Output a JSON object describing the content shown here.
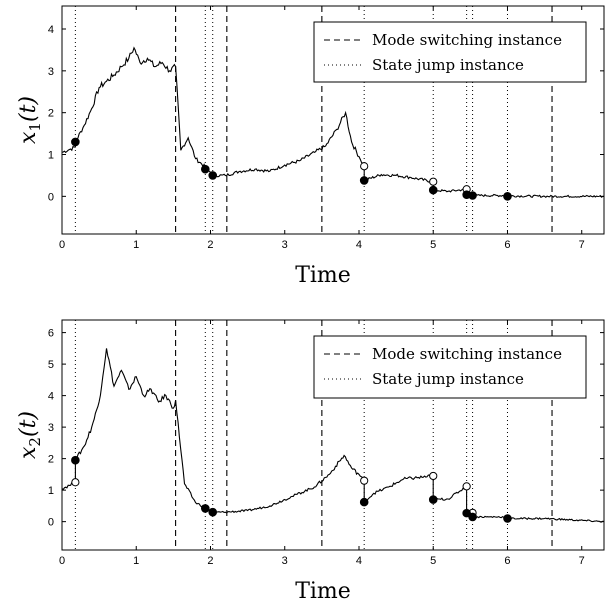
{
  "chart_data": [
    {
      "type": "line",
      "xlabel": "Time",
      "ylabel": "x1(t)",
      "ylabel_parts": {
        "base": "x",
        "sub": "1",
        "arg": "(t)"
      },
      "xlim": [
        0,
        7.3
      ],
      "ylim": [
        -0.9,
        4.55
      ],
      "xticks": [
        "0",
        "1",
        "2",
        "3",
        "4",
        "5",
        "6",
        "7"
      ],
      "yticks": [
        "0",
        "1",
        "2",
        "3",
        "4"
      ],
      "grid": false,
      "legend_position": "top-right",
      "legend": [
        {
          "label": "Mode switching instance",
          "style": "dashed"
        },
        {
          "label": "State jump instance",
          "style": "dotted"
        }
      ],
      "mode_switching_times": [
        1.53,
        2.22,
        3.5,
        6.6
      ],
      "state_jump_times": [
        0.18,
        1.93,
        2.03,
        4.07,
        5.0,
        5.45,
        5.53,
        6.0
      ],
      "series": [
        {
          "x": [
            0,
            0.1,
            0.18,
            0.18,
            0.3,
            0.4,
            0.5,
            0.6,
            0.7,
            0.8,
            0.9,
            0.97,
            1.05,
            1.15,
            1.25,
            1.35,
            1.45,
            1.53,
            1.6,
            1.7,
            1.8,
            1.93,
            1.93,
            2.03,
            2.03,
            2.2,
            2.4,
            2.6,
            2.8,
            3.0,
            3.2,
            3.4,
            3.55,
            3.7,
            3.82,
            3.9,
            4.0,
            4.07,
            4.07,
            4.3,
            4.5,
            4.7,
            5.0,
            5.0,
            5.2,
            5.45,
            5.45,
            5.53,
            5.53,
            6.0,
            6.0,
            6.5,
            7.3
          ],
          "y": [
            1.05,
            1.12,
            1.18,
            1.3,
            1.7,
            2.1,
            2.6,
            2.75,
            2.9,
            3.1,
            3.3,
            3.55,
            3.2,
            3.3,
            3.1,
            3.2,
            3.0,
            3.1,
            1.1,
            1.4,
            0.9,
            0.7,
            0.65,
            0.55,
            0.5,
            0.5,
            0.6,
            0.65,
            0.6,
            0.75,
            0.85,
            1.05,
            1.2,
            1.6,
            2.0,
            1.3,
            0.95,
            0.72,
            0.38,
            0.52,
            0.5,
            0.45,
            0.35,
            0.15,
            0.12,
            0.17,
            0.04,
            0.04,
            0.02,
            0.02,
            0.01,
            0.0,
            0.0
          ]
        }
      ],
      "jump_markers": {
        "pre_jump_open": [
          {
            "x": 4.07,
            "y": 0.72
          },
          {
            "x": 5.0,
            "y": 0.35
          },
          {
            "x": 5.45,
            "y": 0.17
          }
        ],
        "post_jump_filled": [
          {
            "x": 0.18,
            "y": 1.3
          },
          {
            "x": 1.93,
            "y": 0.65
          },
          {
            "x": 2.03,
            "y": 0.5
          },
          {
            "x": 4.07,
            "y": 0.38
          },
          {
            "x": 5.0,
            "y": 0.15
          },
          {
            "x": 5.45,
            "y": 0.04
          },
          {
            "x": 5.53,
            "y": 0.02
          },
          {
            "x": 6.0,
            "y": 0.0
          }
        ]
      }
    },
    {
      "type": "line",
      "xlabel": "Time",
      "ylabel": "x2(t)",
      "ylabel_parts": {
        "base": "x",
        "sub": "2",
        "arg": "(t)"
      },
      "xlim": [
        0,
        7.3
      ],
      "ylim": [
        -0.9,
        6.4
      ],
      "xticks": [
        "0",
        "1",
        "2",
        "3",
        "4",
        "5",
        "6",
        "7"
      ],
      "yticks": [
        "0",
        "1",
        "2",
        "3",
        "4",
        "5",
        "6"
      ],
      "grid": false,
      "legend_position": "top-right",
      "legend": [
        {
          "label": "Mode switching instance",
          "style": "dashed"
        },
        {
          "label": "State jump instance",
          "style": "dotted"
        }
      ],
      "mode_switching_times": [
        1.53,
        2.22,
        3.5,
        6.6
      ],
      "state_jump_times": [
        0.18,
        1.93,
        2.03,
        4.07,
        5.0,
        5.45,
        5.53,
        6.0
      ],
      "series": [
        {
          "x": [
            0,
            0.1,
            0.18,
            0.18,
            0.3,
            0.4,
            0.5,
            0.6,
            0.7,
            0.8,
            0.9,
            1.0,
            1.1,
            1.2,
            1.3,
            1.4,
            1.5,
            1.53,
            1.65,
            1.8,
            1.93,
            1.93,
            2.03,
            2.03,
            2.2,
            2.5,
            2.8,
            3.1,
            3.4,
            3.6,
            3.8,
            3.9,
            4.0,
            4.07,
            4.07,
            4.2,
            4.4,
            4.6,
            4.8,
            5.0,
            5.0,
            5.2,
            5.45,
            5.45,
            5.53,
            5.53,
            6.0,
            6.0,
            6.5,
            7.3
          ],
          "y": [
            1.05,
            1.15,
            1.25,
            1.95,
            2.4,
            3.0,
            3.8,
            5.5,
            4.3,
            4.8,
            4.2,
            4.6,
            4.0,
            4.2,
            3.8,
            4.0,
            3.6,
            3.85,
            1.2,
            0.6,
            0.45,
            0.42,
            0.32,
            0.3,
            0.3,
            0.35,
            0.5,
            0.8,
            1.1,
            1.5,
            2.1,
            1.7,
            1.5,
            1.3,
            0.62,
            0.9,
            1.1,
            1.35,
            1.4,
            1.45,
            0.7,
            0.72,
            1.12,
            0.27,
            0.28,
            0.15,
            0.15,
            0.1,
            0.1,
            0.0
          ]
        }
      ],
      "jump_markers": {
        "pre_jump_open": [
          {
            "x": 0.18,
            "y": 1.25
          },
          {
            "x": 4.07,
            "y": 1.3
          },
          {
            "x": 5.0,
            "y": 1.45
          },
          {
            "x": 5.45,
            "y": 1.12
          },
          {
            "x": 5.53,
            "y": 0.28
          }
        ],
        "post_jump_filled": [
          {
            "x": 0.18,
            "y": 1.95
          },
          {
            "x": 1.93,
            "y": 0.42
          },
          {
            "x": 2.03,
            "y": 0.3
          },
          {
            "x": 4.07,
            "y": 0.62
          },
          {
            "x": 5.0,
            "y": 0.7
          },
          {
            "x": 5.45,
            "y": 0.27
          },
          {
            "x": 5.53,
            "y": 0.15
          },
          {
            "x": 6.0,
            "y": 0.1
          }
        ]
      }
    }
  ]
}
